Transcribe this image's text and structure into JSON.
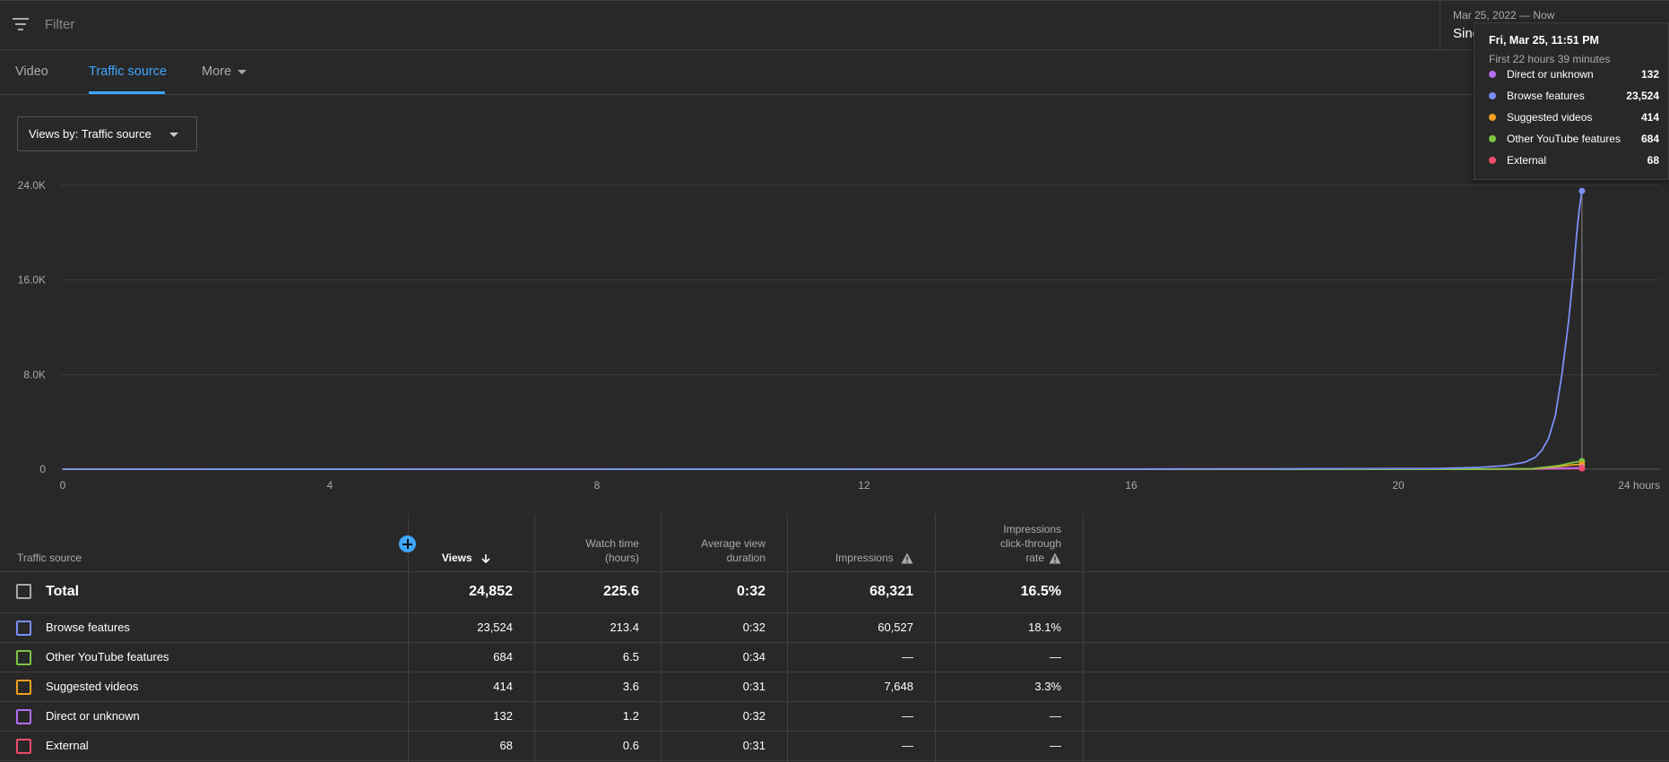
{
  "filter": {
    "placeholder": "Filter",
    "icon": "filter-icon"
  },
  "date_range": {
    "range": "Mar 25, 2022 — Now",
    "value": "Sinc"
  },
  "tabs": [
    {
      "label": "Video"
    },
    {
      "label": "Traffic source",
      "active": true
    },
    {
      "label": "More"
    }
  ],
  "views_select": {
    "label": "Views by: Traffic source"
  },
  "colors": {
    "accent": "#3ea6ff",
    "browse": "#7b8ff5",
    "other": "#7cc443",
    "suggested": "#f0a01e",
    "direct": "#b56cf0",
    "external": "#ee4b6a"
  },
  "chart_data": {
    "type": "line",
    "x_unit": "hours",
    "xlim": [
      0,
      24
    ],
    "ylim": [
      0,
      24000
    ],
    "xticks": [
      "0",
      "4",
      "8",
      "12",
      "16",
      "20",
      "24 hours"
    ],
    "yticks": [
      "0",
      "8.0K",
      "16.0K",
      "24.0K"
    ],
    "grid": true,
    "series": [
      {
        "name": "Browse features",
        "color": "#7b8ff5",
        "points": [
          [
            0,
            0
          ],
          [
            5.6,
            10
          ],
          [
            10,
            12
          ],
          [
            16,
            10
          ],
          [
            20.6,
            60
          ],
          [
            21.2,
            150
          ],
          [
            21.6,
            300
          ],
          [
            21.9,
            600
          ],
          [
            22.05,
            1000
          ],
          [
            22.15,
            1600
          ],
          [
            22.25,
            2600
          ],
          [
            22.35,
            4500
          ],
          [
            22.45,
            8000
          ],
          [
            22.55,
            12500
          ],
          [
            22.62,
            16500
          ],
          [
            22.67,
            19800
          ],
          [
            22.71,
            22000
          ],
          [
            22.75,
            23524
          ]
        ]
      },
      {
        "name": "Other YouTube features",
        "color": "#7cc443",
        "points": [
          [
            0,
            0
          ],
          [
            21,
            0
          ],
          [
            22,
            40
          ],
          [
            22.4,
            300
          ],
          [
            22.6,
            550
          ],
          [
            22.75,
            684
          ]
        ]
      },
      {
        "name": "Suggested videos",
        "color": "#f0a01e",
        "points": [
          [
            0,
            0
          ],
          [
            21,
            0
          ],
          [
            22,
            30
          ],
          [
            22.4,
            220
          ],
          [
            22.6,
            360
          ],
          [
            22.75,
            414
          ]
        ]
      },
      {
        "name": "Direct or unknown",
        "color": "#b56cf0",
        "points": [
          [
            0,
            0
          ],
          [
            5.6,
            0
          ],
          [
            22,
            20
          ],
          [
            22.6,
            100
          ],
          [
            22.75,
            132
          ]
        ]
      },
      {
        "name": "External",
        "color": "#ee4b6a",
        "points": [
          [
            0,
            0
          ],
          [
            22,
            10
          ],
          [
            22.6,
            50
          ],
          [
            22.75,
            68
          ]
        ]
      }
    ],
    "hover_x": 22.75
  },
  "tooltip": {
    "title": "Fri, Mar 25, 11:51 PM",
    "subtitle": "First 22 hours 39 minutes",
    "rows": [
      {
        "label": "Direct or unknown",
        "value": "132",
        "color": "#b56cf0"
      },
      {
        "label": "Browse features",
        "value": "23,524",
        "color": "#7b8ff5"
      },
      {
        "label": "Suggested videos",
        "value": "414",
        "color": "#f0a01e"
      },
      {
        "label": "Other YouTube features",
        "value": "684",
        "color": "#7cc443"
      },
      {
        "label": "External",
        "value": "68",
        "color": "#ee4b6a"
      }
    ]
  },
  "table": {
    "headers": {
      "source": "Traffic source",
      "views": "Views",
      "watch_time_1": "Watch time",
      "watch_time_2": "(hours)",
      "avg_1": "Average view",
      "avg_2": "duration",
      "impressions": "Impressions",
      "ctr_1": "Impressions",
      "ctr_2": "click-through",
      "ctr_3": "rate"
    },
    "total": {
      "label": "Total",
      "views": "24,852",
      "watch_time": "225.6",
      "avg_duration": "0:32",
      "impressions": "68,321",
      "ctr": "16.5%"
    },
    "rows": [
      {
        "label": "Browse features",
        "color": "#7b8ff5",
        "views": "23,524",
        "watch_time": "213.4",
        "avg_duration": "0:32",
        "impressions": "60,527",
        "ctr": "18.1%"
      },
      {
        "label": "Other YouTube features",
        "color": "#7cc443",
        "views": "684",
        "watch_time": "6.5",
        "avg_duration": "0:34",
        "impressions": "—",
        "ctr": "—"
      },
      {
        "label": "Suggested videos",
        "color": "#f0a01e",
        "views": "414",
        "watch_time": "3.6",
        "avg_duration": "0:31",
        "impressions": "7,648",
        "ctr": "3.3%"
      },
      {
        "label": "Direct or unknown",
        "color": "#b56cf0",
        "views": "132",
        "watch_time": "1.2",
        "avg_duration": "0:32",
        "impressions": "—",
        "ctr": "—"
      },
      {
        "label": "External",
        "color": "#ee4b6a",
        "views": "68",
        "watch_time": "0.6",
        "avg_duration": "0:31",
        "impressions": "—",
        "ctr": "—"
      }
    ]
  }
}
